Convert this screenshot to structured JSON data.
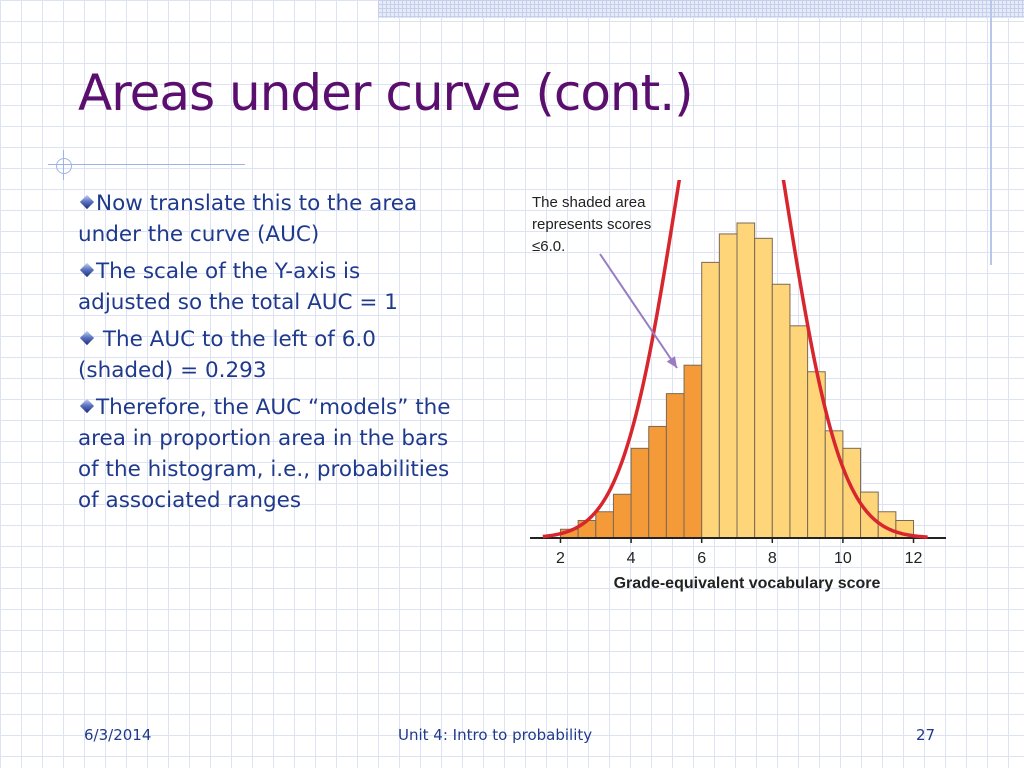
{
  "slide": {
    "title": "Areas under curve (cont.)",
    "bullets": [
      "Now translate this to the area under the curve (AUC)",
      "The scale of the Y-axis is adjusted so the total AUC = 1",
      " The AUC to the left of 6.0 (shaded) = 0.293",
      "Therefore, the AUC “models” the area in proportion area in the bars of the histogram, i.e., probabilities of associated ranges"
    ]
  },
  "footer": {
    "date": "6/3/2014",
    "center": "Unit 4: Intro to probability",
    "page": "27"
  },
  "colors": {
    "title": "#5a0e6e",
    "text": "#1f3a8c",
    "bar_light": "#ffd57a",
    "bar_shaded": "#f59a38",
    "curve": "#d8262e",
    "arrow": "#9a7cc4"
  },
  "chart_data": {
    "type": "bar",
    "xlabel": "Grade-equivalent vocabulary score",
    "annotation": "The shaded area represents scores ≤6.0.",
    "xlim": [
      1.25,
      12.75
    ],
    "ylim": [
      0,
      0.16
    ],
    "xticks": [
      "2",
      "4",
      "6",
      "8",
      "10",
      "12"
    ],
    "bin_width": 0.5,
    "shaded_max": 6.0,
    "bins_start": [
      2.0,
      2.5,
      3.0,
      3.5,
      4.0,
      4.5,
      5.0,
      5.5,
      6.0,
      6.5,
      7.0,
      7.5,
      8.0,
      8.5,
      9.0,
      9.5,
      10.0,
      10.5,
      11.0,
      11.5
    ],
    "values": [
      0.004,
      0.008,
      0.012,
      0.02,
      0.041,
      0.051,
      0.066,
      0.079,
      0.126,
      0.139,
      0.144,
      0.137,
      0.116,
      0.097,
      0.076,
      0.049,
      0.041,
      0.021,
      0.012,
      0.008
    ],
    "curve": {
      "type": "normal",
      "mean": 6.84,
      "sd": 1.55
    }
  }
}
